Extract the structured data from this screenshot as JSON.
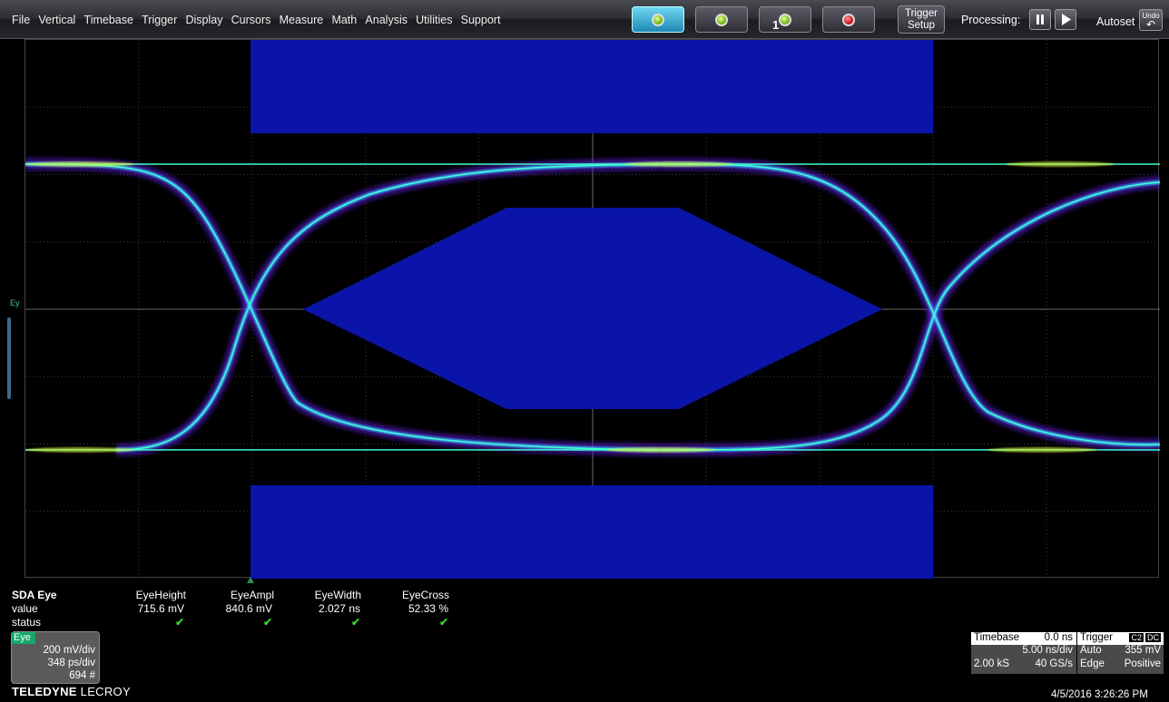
{
  "menu": [
    "File",
    "Vertical",
    "Timebase",
    "Trigger",
    "Display",
    "Cursors",
    "Measure",
    "Math",
    "Analysis",
    "Utilities",
    "Support"
  ],
  "toolbar": {
    "trigger_setup": [
      "Trigger",
      "Setup"
    ],
    "processing_label": "Processing:",
    "autoset_label": "Autoset",
    "undo_label": "Undo",
    "single_sub": "1"
  },
  "trace_label": "Ey",
  "measurements": {
    "title": "SDA Eye",
    "row_labels": [
      "value",
      "status"
    ],
    "columns": [
      {
        "name": "EyeHeight",
        "value": "715.6 mV",
        "status": "✔"
      },
      {
        "name": "EyeAmpl",
        "value": "840.6 mV",
        "status": "✔"
      },
      {
        "name": "EyeWidth",
        "value": "2.027 ns",
        "status": "✔"
      },
      {
        "name": "EyeCross",
        "value": "52.33 %",
        "status": "✔"
      }
    ]
  },
  "eye_channel": {
    "tag": "Eye",
    "vdiv": "200 mV/div",
    "hdiv": "348 ps/div",
    "count": "694 #"
  },
  "brand": {
    "bold": "TELEDYNE",
    "rest": " LECROY"
  },
  "timebase": {
    "label": "Timebase",
    "delay": "0.0 ns",
    "tdiv": "5.00 ns/div",
    "samples": "2.00 kS",
    "rate": "40 GS/s"
  },
  "trigger": {
    "label": "Trigger",
    "chip1": "C2",
    "chip2": "DC",
    "mode": "Auto",
    "level": "355 mV",
    "type": "Edge",
    "slope": "Positive"
  },
  "datetime": "4/5/2016 3:26:26 PM",
  "colors": {
    "mask": "#0a14a8",
    "trace_outer": "#5a1fd6",
    "trace_mid": "#3aa8ff",
    "trace_core": "#3fffcf",
    "hot": "#e8ff3a"
  }
}
